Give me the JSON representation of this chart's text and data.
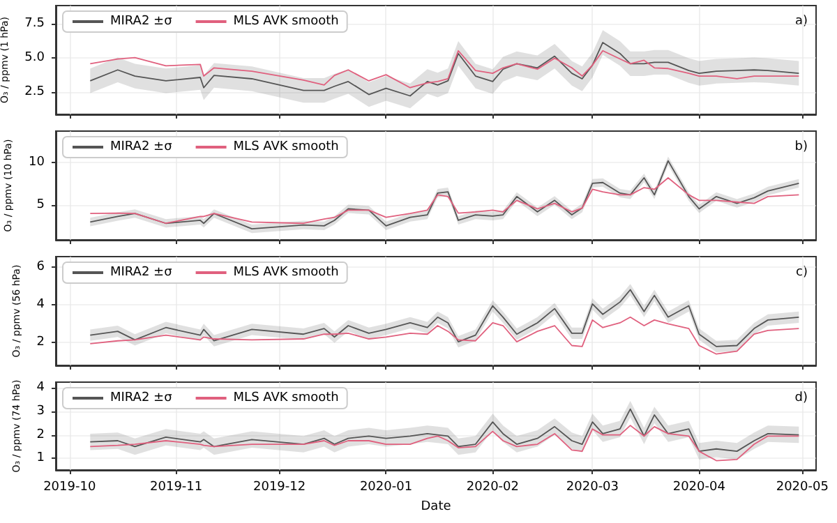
{
  "chart_data": [
    {
      "type": "line",
      "ylabel": "O₃ / ppmv (1 hPa)",
      "annotations": [
        "a)"
      ],
      "grid": true,
      "legend": "top left",
      "marker": "none",
      "tick_labels": "y",
      "x": [
        "2019-10-07",
        "2019-10-15",
        "2019-10-20",
        "2019-10-29",
        "2019-11-08",
        "2019-11-09",
        "2019-11-12",
        "2019-11-23",
        "2019-12-08",
        "2019-12-14",
        "2019-12-17",
        "2019-12-21",
        "2019-12-27",
        "2020-01-01",
        "2020-01-08",
        "2020-01-13",
        "2020-01-16",
        "2020-01-19",
        "2020-01-22",
        "2020-01-27",
        "2020-02-01",
        "2020-02-04",
        "2020-02-08",
        "2020-02-14",
        "2020-02-19",
        "2020-02-24",
        "2020-02-27",
        "2020-03-01",
        "2020-03-04",
        "2020-03-09",
        "2020-03-12",
        "2020-03-16",
        "2020-03-19",
        "2020-03-23",
        "2020-03-29",
        "2020-04-01",
        "2020-04-06",
        "2020-04-12",
        "2020-04-17",
        "2020-04-21",
        "2020-04-30"
      ],
      "xlim": [
        "2019-09-27",
        "2020-05-05"
      ],
      "xticks": [
        "2019-10",
        "2019-11",
        "2019-12",
        "2020-01",
        "2020-02",
        "2020-03",
        "2020-04",
        "2020-05"
      ],
      "ylim": [
        0.85,
        8.8
      ],
      "yticks": [
        {
          "value": 2.5,
          "label": "2.5"
        },
        {
          "value": 5,
          "label": "5.0"
        },
        {
          "value": 7.5,
          "label": "7.5"
        }
      ],
      "series": [
        {
          "name": "MIRA2 ±σ",
          "color": "#555555",
          "values": [
            3.3,
            4.1,
            3.65,
            3.3,
            3.55,
            2.8,
            3.7,
            3.45,
            2.6,
            2.6,
            2.9,
            3.25,
            2.3,
            2.75,
            2.2,
            3.25,
            3.0,
            3.3,
            5.3,
            3.65,
            3.25,
            4.15,
            4.55,
            4.25,
            5.1,
            3.85,
            3.45,
            4.45,
            6.1,
            5.3,
            4.55,
            4.55,
            4.65,
            4.65,
            4.05,
            3.85,
            4.0,
            4.05,
            4.1,
            4.05,
            3.85
          ],
          "lower": [
            2.4,
            3.2,
            2.75,
            2.4,
            2.65,
            1.9,
            2.8,
            2.55,
            1.7,
            1.7,
            2.0,
            2.35,
            1.4,
            1.85,
            1.3,
            2.35,
            2.1,
            2.4,
            4.4,
            2.75,
            2.35,
            3.25,
            3.65,
            3.35,
            4.2,
            2.95,
            2.55,
            3.55,
            5.2,
            4.4,
            3.65,
            3.65,
            3.75,
            3.75,
            3.15,
            2.95,
            3.1,
            3.15,
            3.2,
            3.15,
            2.95
          ],
          "upper": [
            4.2,
            5.0,
            4.55,
            4.2,
            4.45,
            3.7,
            4.6,
            4.35,
            3.5,
            3.5,
            3.8,
            4.15,
            3.2,
            3.65,
            3.1,
            4.15,
            3.9,
            4.2,
            6.2,
            4.55,
            4.15,
            5.05,
            5.45,
            5.15,
            6.0,
            4.75,
            4.35,
            5.35,
            7.0,
            6.2,
            5.45,
            5.45,
            5.55,
            5.55,
            4.95,
            4.75,
            4.9,
            4.95,
            5.0,
            4.95,
            4.75
          ]
        },
        {
          "name": "MLS AVK smooth",
          "color": "#e0607e",
          "values": [
            4.55,
            4.9,
            5.0,
            4.4,
            4.5,
            3.65,
            4.25,
            4.0,
            3.35,
            3.0,
            3.7,
            4.1,
            3.3,
            3.75,
            2.8,
            3.15,
            3.25,
            3.45,
            5.5,
            4.05,
            3.85,
            4.25,
            4.55,
            4.15,
            4.95,
            4.25,
            3.65,
            4.45,
            5.5,
            4.9,
            4.55,
            4.8,
            4.25,
            4.2,
            3.85,
            3.65,
            3.65,
            3.45,
            3.65,
            3.65,
            3.65
          ]
        }
      ]
    },
    {
      "type": "line",
      "ylabel": "O₃ / ppmv (10 hPa)",
      "annotations": [
        "b)"
      ],
      "grid": true,
      "legend": "top left",
      "marker": "none",
      "tick_labels": "y",
      "x": [
        "2019-10-07",
        "2019-10-15",
        "2019-10-20",
        "2019-10-29",
        "2019-11-08",
        "2019-11-09",
        "2019-11-12",
        "2019-11-23",
        "2019-12-08",
        "2019-12-14",
        "2019-12-17",
        "2019-12-21",
        "2019-12-27",
        "2020-01-01",
        "2020-01-08",
        "2020-01-13",
        "2020-01-16",
        "2020-01-19",
        "2020-01-22",
        "2020-01-27",
        "2020-02-01",
        "2020-02-04",
        "2020-02-08",
        "2020-02-14",
        "2020-02-19",
        "2020-02-24",
        "2020-02-27",
        "2020-03-01",
        "2020-03-04",
        "2020-03-09",
        "2020-03-12",
        "2020-03-16",
        "2020-03-19",
        "2020-03-23",
        "2020-03-29",
        "2020-04-01",
        "2020-04-06",
        "2020-04-12",
        "2020-04-17",
        "2020-04-21",
        "2020-04-30"
      ],
      "xlim": [
        "2019-09-27",
        "2020-05-05"
      ],
      "xticks": [
        "2019-10",
        "2019-11",
        "2019-12",
        "2020-01",
        "2020-02",
        "2020-03",
        "2020-04",
        "2020-05"
      ],
      "ylim": [
        0.9,
        13.7
      ],
      "yticks": [
        5,
        10
      ],
      "series": [
        {
          "name": "MIRA2 ±σ",
          "color": "#555555",
          "values": [
            3.0,
            3.65,
            4.0,
            2.85,
            3.2,
            2.85,
            4.0,
            2.2,
            2.65,
            2.55,
            3.2,
            4.55,
            4.4,
            2.55,
            3.55,
            3.85,
            6.4,
            6.55,
            3.2,
            3.85,
            3.7,
            3.85,
            6.0,
            4.2,
            5.55,
            3.85,
            4.65,
            7.55,
            7.65,
            6.4,
            6.2,
            8.2,
            6.2,
            10.2,
            6.0,
            4.55,
            6.0,
            5.2,
            5.85,
            6.65,
            7.55
          ],
          "lower": [
            2.5,
            3.15,
            3.5,
            2.35,
            2.7,
            2.35,
            3.5,
            1.7,
            2.15,
            2.05,
            2.7,
            4.05,
            3.9,
            2.05,
            3.05,
            3.35,
            5.9,
            6.05,
            2.7,
            3.35,
            3.2,
            3.35,
            5.5,
            3.7,
            5.05,
            3.35,
            4.15,
            7.05,
            7.15,
            5.9,
            5.7,
            7.7,
            5.7,
            9.7,
            5.5,
            4.05,
            5.5,
            4.7,
            5.35,
            6.15,
            7.05
          ],
          "upper": [
            3.5,
            4.15,
            4.5,
            3.35,
            3.7,
            3.35,
            4.5,
            2.7,
            3.15,
            3.05,
            3.7,
            5.05,
            4.9,
            3.05,
            4.05,
            4.35,
            6.9,
            7.05,
            3.7,
            4.35,
            4.2,
            4.35,
            6.5,
            4.7,
            6.05,
            4.35,
            5.15,
            8.05,
            8.15,
            6.9,
            6.7,
            8.7,
            6.7,
            10.7,
            6.5,
            5.05,
            6.5,
            5.7,
            6.35,
            7.15,
            8.05
          ]
        },
        {
          "name": "MLS AVK smooth",
          "color": "#e0607e",
          "values": [
            4.0,
            4.05,
            4.0,
            2.85,
            3.65,
            3.65,
            4.0,
            3.0,
            2.85,
            3.35,
            3.55,
            4.4,
            4.4,
            3.55,
            4.0,
            4.4,
            6.2,
            6.0,
            4.05,
            4.2,
            4.4,
            4.2,
            5.55,
            4.55,
            5.2,
            4.2,
            4.65,
            6.85,
            6.55,
            6.2,
            6.2,
            7.05,
            6.85,
            8.2,
            6.2,
            5.55,
            5.55,
            5.35,
            5.2,
            6.0,
            6.2
          ]
        }
      ]
    },
    {
      "type": "line",
      "ylabel": "O₃ / ppmv (56 hPa)",
      "annotations": [
        "c)"
      ],
      "grid": true,
      "legend": "top left",
      "marker": "none",
      "tick_labels": "y",
      "x": [
        "2019-10-07",
        "2019-10-15",
        "2019-10-20",
        "2019-10-29",
        "2019-11-08",
        "2019-11-09",
        "2019-11-12",
        "2019-11-23",
        "2019-12-08",
        "2019-12-14",
        "2019-12-17",
        "2019-12-21",
        "2019-12-27",
        "2020-01-01",
        "2020-01-08",
        "2020-01-13",
        "2020-01-16",
        "2020-01-19",
        "2020-01-22",
        "2020-01-27",
        "2020-02-01",
        "2020-02-04",
        "2020-02-08",
        "2020-02-14",
        "2020-02-19",
        "2020-02-24",
        "2020-02-27",
        "2020-03-01",
        "2020-03-04",
        "2020-03-09",
        "2020-03-12",
        "2020-03-16",
        "2020-03-19",
        "2020-03-23",
        "2020-03-29",
        "2020-04-01",
        "2020-04-06",
        "2020-04-12",
        "2020-04-17",
        "2020-04-21",
        "2020-04-30"
      ],
      "xlim": [
        "2019-09-27",
        "2020-05-05"
      ],
      "xticks": [
        "2019-10",
        "2019-11",
        "2019-12",
        "2020-01",
        "2020-02",
        "2020-03",
        "2020-04",
        "2020-05"
      ],
      "ylim": [
        0.8,
        6.55
      ],
      "yticks": [
        2,
        4,
        6
      ],
      "series": [
        {
          "name": "MIRA2 ±σ",
          "color": "#555555",
          "values": [
            2.4,
            2.6,
            2.15,
            2.8,
            2.4,
            2.7,
            2.1,
            2.7,
            2.45,
            2.75,
            2.3,
            2.9,
            2.5,
            2.7,
            3.05,
            2.8,
            3.35,
            3.05,
            2.05,
            2.4,
            3.95,
            3.35,
            2.45,
            3.05,
            3.8,
            2.5,
            2.5,
            4.05,
            3.5,
            4.15,
            4.8,
            3.65,
            4.5,
            3.35,
            3.95,
            2.45,
            1.8,
            1.85,
            2.75,
            3.2,
            3.35
          ],
          "lower": [
            2.1,
            2.3,
            1.85,
            2.5,
            2.1,
            2.4,
            1.8,
            2.4,
            2.15,
            2.45,
            2.0,
            2.6,
            2.2,
            2.4,
            2.75,
            2.5,
            3.05,
            2.75,
            1.75,
            2.1,
            3.65,
            3.05,
            2.15,
            2.75,
            3.5,
            2.2,
            2.2,
            3.75,
            3.2,
            3.85,
            4.5,
            3.35,
            4.2,
            3.05,
            3.65,
            2.15,
            1.5,
            1.55,
            2.45,
            2.9,
            3.05
          ],
          "upper": [
            2.7,
            2.9,
            2.45,
            3.1,
            2.7,
            3.0,
            2.4,
            3.0,
            2.75,
            3.05,
            2.6,
            3.2,
            2.8,
            3.0,
            3.35,
            3.1,
            3.65,
            3.35,
            2.35,
            2.7,
            4.25,
            3.65,
            2.75,
            3.35,
            4.1,
            2.8,
            2.8,
            4.35,
            3.8,
            4.45,
            5.1,
            3.95,
            4.8,
            3.65,
            4.25,
            2.75,
            2.1,
            2.15,
            3.05,
            3.5,
            3.65
          ]
        },
        {
          "name": "MLS AVK smooth",
          "color": "#e0607e",
          "values": [
            1.95,
            2.1,
            2.15,
            2.4,
            2.15,
            2.3,
            2.2,
            2.15,
            2.2,
            2.45,
            2.45,
            2.5,
            2.2,
            2.3,
            2.5,
            2.45,
            2.9,
            2.6,
            2.15,
            2.1,
            3.05,
            2.9,
            2.05,
            2.6,
            2.9,
            1.85,
            1.8,
            3.2,
            2.8,
            3.05,
            3.35,
            2.9,
            3.2,
            3.0,
            2.75,
            1.85,
            1.4,
            1.55,
            2.45,
            2.65,
            2.75
          ]
        }
      ]
    },
    {
      "type": "line",
      "ylabel": "O₃ / ppmv (74 hPa)",
      "xlabel": "Date",
      "annotations": [
        "d)"
      ],
      "grid": true,
      "legend": "top left",
      "marker": "none",
      "x": [
        "2019-10-07",
        "2019-10-15",
        "2019-10-20",
        "2019-10-29",
        "2019-11-08",
        "2019-11-09",
        "2019-11-12",
        "2019-11-23",
        "2019-12-08",
        "2019-12-14",
        "2019-12-17",
        "2019-12-21",
        "2019-12-27",
        "2020-01-01",
        "2020-01-08",
        "2020-01-13",
        "2020-01-16",
        "2020-01-19",
        "2020-01-22",
        "2020-01-27",
        "2020-02-01",
        "2020-02-04",
        "2020-02-08",
        "2020-02-14",
        "2020-02-19",
        "2020-02-24",
        "2020-02-27",
        "2020-03-01",
        "2020-03-04",
        "2020-03-09",
        "2020-03-12",
        "2020-03-16",
        "2020-03-19",
        "2020-03-23",
        "2020-03-29",
        "2020-04-01",
        "2020-04-06",
        "2020-04-12",
        "2020-04-17",
        "2020-04-21",
        "2020-04-30"
      ],
      "xlim": [
        "2019-09-27",
        "2020-05-05"
      ],
      "xticks": [
        "2019-10",
        "2019-11",
        "2019-12",
        "2020-01",
        "2020-02",
        "2020-03",
        "2020-04",
        "2020-05"
      ],
      "ylim": [
        0.5,
        4.25
      ],
      "yticks": [
        1,
        2,
        3,
        4
      ],
      "series": [
        {
          "name": "MIRA2 ±σ",
          "color": "#555555",
          "values": [
            1.7,
            1.75,
            1.5,
            1.9,
            1.7,
            1.8,
            1.5,
            1.8,
            1.6,
            1.85,
            1.6,
            1.85,
            1.95,
            1.85,
            1.95,
            2.05,
            2.0,
            1.95,
            1.5,
            1.6,
            2.55,
            2.05,
            1.6,
            1.85,
            2.35,
            1.75,
            1.6,
            2.55,
            2.05,
            2.25,
            3.1,
            1.95,
            2.85,
            2.05,
            2.25,
            1.3,
            1.4,
            1.3,
            1.75,
            2.05,
            2.0
          ],
          "lower": [
            1.35,
            1.4,
            1.15,
            1.55,
            1.35,
            1.45,
            1.15,
            1.45,
            1.25,
            1.5,
            1.25,
            1.5,
            1.6,
            1.5,
            1.6,
            1.7,
            1.65,
            1.6,
            1.15,
            1.25,
            2.2,
            1.7,
            1.25,
            1.5,
            2.0,
            1.4,
            1.25,
            2.2,
            1.7,
            1.9,
            2.75,
            1.6,
            2.5,
            1.7,
            1.9,
            0.95,
            1.05,
            0.95,
            1.4,
            1.7,
            1.65
          ],
          "upper": [
            2.05,
            2.1,
            1.85,
            2.25,
            2.05,
            2.15,
            1.85,
            2.15,
            1.95,
            2.2,
            1.95,
            2.2,
            2.3,
            2.2,
            2.3,
            2.4,
            2.35,
            2.3,
            1.85,
            1.95,
            2.9,
            2.4,
            1.95,
            2.2,
            2.7,
            2.1,
            1.95,
            2.9,
            2.4,
            2.6,
            3.45,
            2.3,
            3.2,
            2.4,
            2.6,
            1.65,
            1.75,
            1.65,
            2.1,
            2.4,
            2.35
          ]
        },
        {
          "name": "MLS AVK smooth",
          "color": "#e0607e",
          "values": [
            1.5,
            1.55,
            1.6,
            1.75,
            1.6,
            1.55,
            1.5,
            1.6,
            1.6,
            1.75,
            1.55,
            1.75,
            1.75,
            1.6,
            1.6,
            1.85,
            1.95,
            1.75,
            1.45,
            1.5,
            2.15,
            1.75,
            1.5,
            1.6,
            2.05,
            1.35,
            1.3,
            2.25,
            2.0,
            2.0,
            2.4,
            1.95,
            2.35,
            2.05,
            1.95,
            1.3,
            0.9,
            0.95,
            1.6,
            1.95,
            1.95
          ]
        }
      ]
    }
  ]
}
